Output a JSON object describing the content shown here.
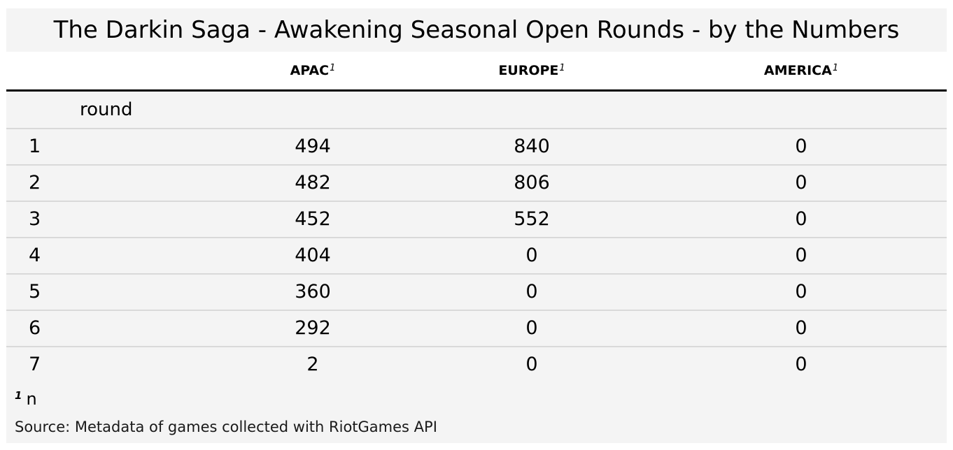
{
  "chart_data": {
    "type": "table",
    "title": "The Darkin Saga - Awakening Seasonal Open Rounds - by the Numbers",
    "stub_header": "round",
    "columns": [
      {
        "label": "APAC",
        "footnote_mark": "1"
      },
      {
        "label": "EUROPE",
        "footnote_mark": "1"
      },
      {
        "label": "AMERICA",
        "footnote_mark": "1"
      }
    ],
    "rows": [
      {
        "round": "1",
        "values": [
          "494",
          "840",
          "0"
        ]
      },
      {
        "round": "2",
        "values": [
          "482",
          "806",
          "0"
        ]
      },
      {
        "round": "3",
        "values": [
          "452",
          "552",
          "0"
        ]
      },
      {
        "round": "4",
        "values": [
          "404",
          "0",
          "0"
        ]
      },
      {
        "round": "5",
        "values": [
          "360",
          "0",
          "0"
        ]
      },
      {
        "round": "6",
        "values": [
          "292",
          "0",
          "0"
        ]
      },
      {
        "round": "7",
        "values": [
          "2",
          "0",
          "0"
        ]
      }
    ],
    "footnotes": [
      {
        "mark": "1",
        "text": "n"
      }
    ],
    "source_note": "Source: Metadata of games collected with RiotGames API"
  }
}
